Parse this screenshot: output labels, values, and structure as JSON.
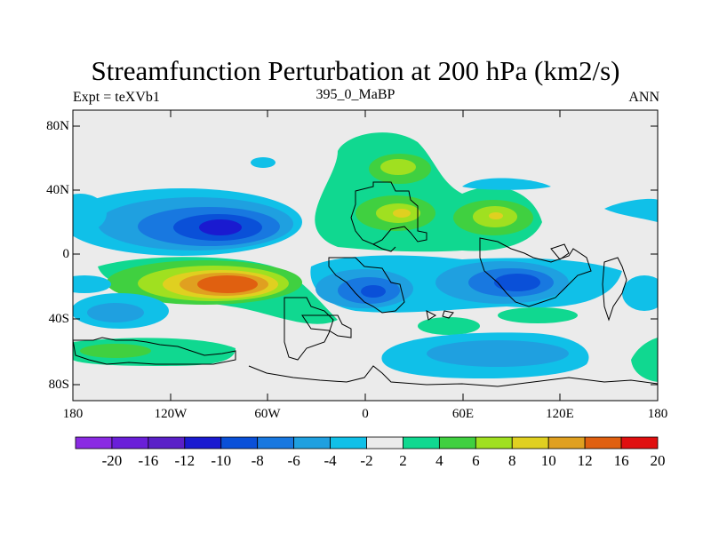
{
  "title": "Streamfunction Perturbation at 200 hPa (km2/s)",
  "subtitle_left": "Expt = teXVb1",
  "subtitle_center": "395_0_MaBP",
  "subtitle_right": "ANN",
  "lat_ticks": [
    "80N",
    "40N",
    "0",
    "40S",
    "80S"
  ],
  "lon_ticks": [
    "180",
    "120W",
    "60W",
    "0",
    "60E",
    "120E",
    "180"
  ],
  "colorbar": {
    "labels": [
      "-20",
      "-16",
      "-12",
      "-10",
      "-8",
      "-6",
      "-4",
      "-2",
      "2",
      "4",
      "6",
      "8",
      "10",
      "12",
      "16",
      "20"
    ],
    "colors": [
      "#8a2be2",
      "#6a1fd8",
      "#5a20c8",
      "#1a1ad0",
      "#0a50d8",
      "#1878e0",
      "#1fa0e0",
      "#10c0e8",
      "#ebebeb",
      "#10d890",
      "#40d040",
      "#a0e020",
      "#e0d020",
      "#e0a020",
      "#e06010",
      "#e01010"
    ]
  },
  "field_colors": {
    "background": "#ebebeb",
    "land_outline": "#000000"
  }
}
